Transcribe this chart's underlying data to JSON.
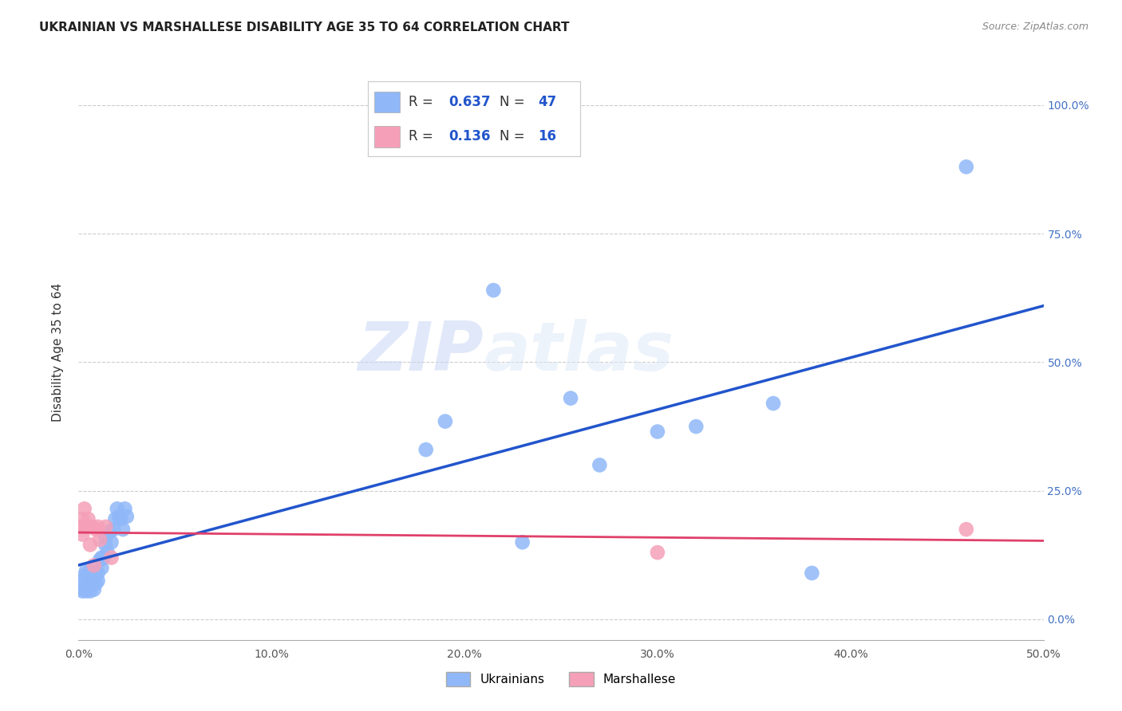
{
  "title": "UKRAINIAN VS MARSHALLESE DISABILITY AGE 35 TO 64 CORRELATION CHART",
  "source": "Source: ZipAtlas.com",
  "ylabel": "Disability Age 35 to 64",
  "xlabel": "",
  "watermark_zip": "ZIP",
  "watermark_atlas": "atlas",
  "blue_R": 0.637,
  "blue_N": 47,
  "pink_R": 0.136,
  "pink_N": 16,
  "blue_color": "#90b8f8",
  "pink_color": "#f5a0b8",
  "blue_line_color": "#2255cc",
  "pink_line_color": "#e0406a",
  "legend_blue_label": "Ukrainians",
  "legend_pink_label": "Marshallese",
  "xlim": [
    0.0,
    0.5
  ],
  "ylim": [
    -0.04,
    1.08
  ],
  "xticks": [
    0.0,
    0.1,
    0.2,
    0.3,
    0.4,
    0.5
  ],
  "yticks": [
    0.0,
    0.25,
    0.5,
    0.75,
    1.0
  ],
  "blue_x": [
    0.001,
    0.002,
    0.002,
    0.003,
    0.003,
    0.004,
    0.004,
    0.005,
    0.005,
    0.006,
    0.006,
    0.007,
    0.007,
    0.008,
    0.008,
    0.009,
    0.009,
    0.01,
    0.01,
    0.011,
    0.012,
    0.012,
    0.013,
    0.014,
    0.014,
    0.015,
    0.016,
    0.017,
    0.018,
    0.019,
    0.02,
    0.021,
    0.022,
    0.023,
    0.024,
    0.025,
    0.18,
    0.19,
    0.215,
    0.23,
    0.255,
    0.27,
    0.3,
    0.32,
    0.36,
    0.38,
    0.46
  ],
  "blue_y": [
    0.06,
    0.055,
    0.075,
    0.06,
    0.085,
    0.055,
    0.095,
    0.065,
    0.085,
    0.055,
    0.095,
    0.068,
    0.088,
    0.058,
    0.08,
    0.07,
    0.09,
    0.075,
    0.09,
    0.115,
    0.1,
    0.12,
    0.12,
    0.145,
    0.16,
    0.13,
    0.17,
    0.15,
    0.175,
    0.195,
    0.215,
    0.2,
    0.195,
    0.175,
    0.215,
    0.2,
    0.33,
    0.385,
    0.64,
    0.15,
    0.43,
    0.3,
    0.365,
    0.375,
    0.42,
    0.09,
    0.88
  ],
  "pink_x": [
    0.001,
    0.002,
    0.002,
    0.003,
    0.004,
    0.005,
    0.006,
    0.007,
    0.008,
    0.009,
    0.01,
    0.011,
    0.014,
    0.017,
    0.3,
    0.46
  ],
  "pink_y": [
    0.18,
    0.165,
    0.195,
    0.215,
    0.18,
    0.195,
    0.145,
    0.18,
    0.105,
    0.175,
    0.18,
    0.155,
    0.18,
    0.12,
    0.13,
    0.175
  ],
  "grid_color": "#cccccc",
  "background_color": "#ffffff",
  "title_fontsize": 11,
  "axis_label_fontsize": 11,
  "tick_fontsize": 10,
  "right_tick_color": "#4472c4"
}
